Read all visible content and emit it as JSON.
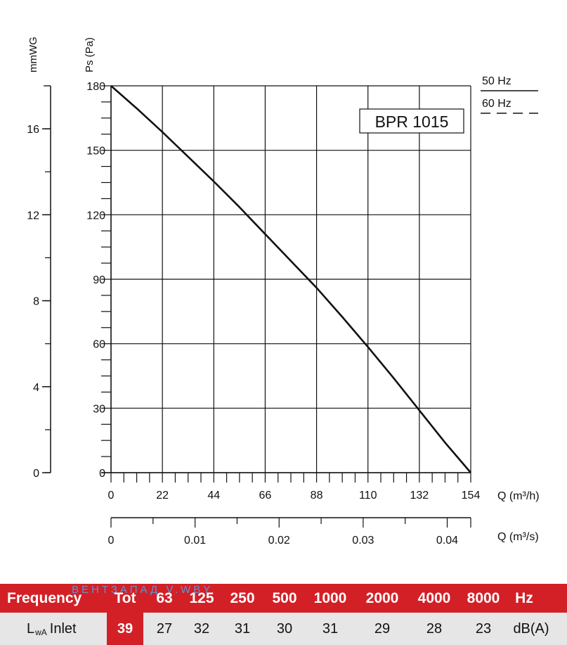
{
  "chart_data": {
    "type": "line",
    "model_label": "BPR 1015",
    "y_left_outer_label": "mmWG",
    "y_left_outer_ticks": [
      "0",
      "4",
      "8",
      "12",
      "16"
    ],
    "y_left_outer_range": [
      0,
      18
    ],
    "y_label": "Ps (Pa)",
    "y_range": [
      0,
      180
    ],
    "y_ticks": [
      "0",
      "30",
      "60",
      "90",
      "120",
      "150",
      "180"
    ],
    "x_label": "Q (m³/h)",
    "x_range": [
      0,
      154
    ],
    "x_ticks": [
      "0",
      "22",
      "44",
      "66",
      "88",
      "110",
      "132",
      "154"
    ],
    "x2_label": "Q (m³/s)",
    "x2_range": [
      0,
      0.0428
    ],
    "x2_ticks": [
      "0",
      "0.01",
      "0.02",
      "0.03",
      "0.04"
    ],
    "legend": [
      {
        "label": "50 Hz",
        "style": "solid"
      },
      {
        "label": "60 Hz",
        "style": "dashed"
      }
    ],
    "grid": true,
    "series": [
      {
        "name": "50 Hz",
        "x": [
          0,
          11,
          22,
          33,
          44,
          55,
          66,
          77,
          88,
          99,
          110,
          121,
          132,
          143,
          154
        ],
        "y": [
          180,
          169.5,
          158.5,
          147,
          135.5,
          123.5,
          111,
          98.5,
          86,
          72.5,
          58.5,
          44,
          29,
          14,
          0
        ]
      }
    ]
  },
  "table": {
    "header_label": "Frequency",
    "header_cols": [
      "Tot",
      "63",
      "125",
      "250",
      "500",
      "1000",
      "2000",
      "4000",
      "8000",
      "Hz"
    ],
    "watermark": "ВЕНТЗАПАД    V.WBY",
    "row_label_main": "L",
    "row_label_sub": "wA",
    "row_label_rest": "Inlet",
    "tot_value": "39",
    "values": [
      "27",
      "32",
      "31",
      "30",
      "31",
      "29",
      "28",
      "23",
      "dB(A)"
    ]
  }
}
